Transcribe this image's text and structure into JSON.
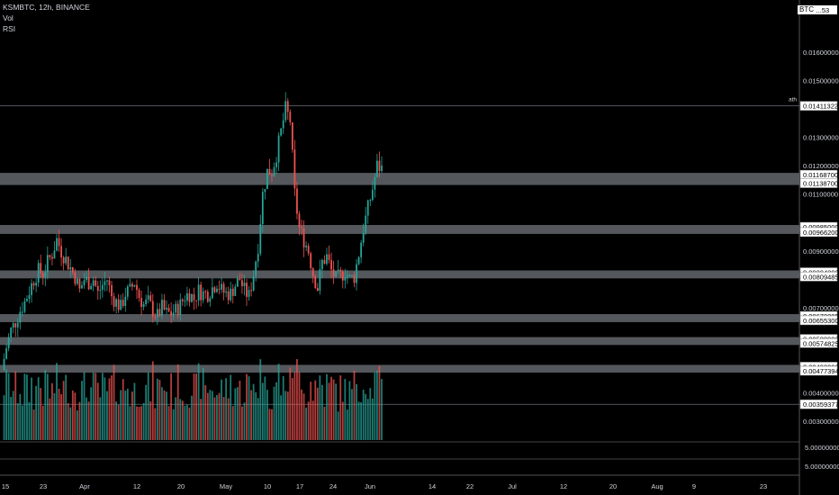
{
  "header": {
    "title": "KSMBTC, 12h, BINANCE",
    "indicators": [
      "Vol",
      "RSI"
    ],
    "top_price_label": "0.01...53",
    "currency_label": "BTC"
  },
  "chart_data": {
    "type": "candlestick",
    "symbol": "KSMBTC",
    "interval": "12h",
    "exchange": "BINANCE",
    "ylim": [
      0.0023,
      0.0174
    ],
    "price_ticks": [
      "0.01600000",
      "0.01500000",
      "0.01300000",
      "0.01200000",
      "0.01100000",
      "0.00900000",
      "0.00700000",
      "0.00400000",
      "0.00300000"
    ],
    "x_ticks": [
      "15",
      "23",
      "Apr",
      "12",
      "20",
      "May",
      "10",
      "17",
      "24",
      "Jun",
      "14",
      "22",
      "Jul",
      "12",
      "20",
      "Aug",
      "9",
      "23"
    ],
    "annotations": [
      {
        "text": "ath",
        "price": 0.01411322
      }
    ],
    "levels": [
      {
        "label": "0.01411322",
        "price": 0.01411322,
        "zone": false
      },
      {
        "label": "0.01168700",
        "price": 0.011687,
        "zone": true
      },
      {
        "label": "0.01138700",
        "price": 0.011387,
        "zone": true
      },
      {
        "label": "0.00985000",
        "price": 0.00985,
        "zone": true
      },
      {
        "label": "0.00966200",
        "price": 0.009662,
        "zone": true
      },
      {
        "label": "0.00824800",
        "price": 0.008248,
        "zone": true
      },
      {
        "label": "0.00809485",
        "price": 0.00809485,
        "zone": true
      },
      {
        "label": "0.00670885",
        "price": 0.00670885,
        "zone": true
      },
      {
        "label": "0.00655300",
        "price": 0.006553,
        "zone": true
      },
      {
        "label": "0.00589900",
        "price": 0.005899,
        "zone": true
      },
      {
        "label": "0.00574825",
        "price": 0.00574825,
        "zone": true
      },
      {
        "label": "0.00492000",
        "price": 0.00492,
        "zone": true
      },
      {
        "label": "0.00477394",
        "price": 0.00477394,
        "zone": true
      },
      {
        "label": "0.00359377",
        "price": 0.00359377,
        "zone": false
      }
    ],
    "price_path": [
      0.0048,
      0.0056,
      0.0062,
      0.0065,
      0.0069,
      0.0072,
      0.0076,
      0.008,
      0.0083,
      0.0082,
      0.0086,
      0.0089,
      0.0094,
      0.009,
      0.0087,
      0.0084,
      0.0081,
      0.0076,
      0.008,
      0.0079,
      0.008,
      0.0075,
      0.0078,
      0.008,
      0.0074,
      0.0072,
      0.007,
      0.0075,
      0.0076,
      0.0079,
      0.0074,
      0.0071,
      0.0072,
      0.0069,
      0.0067,
      0.007,
      0.0068,
      0.0068,
      0.0069,
      0.0071,
      0.0074,
      0.0075,
      0.0073,
      0.0076,
      0.0075,
      0.0075,
      0.0077,
      0.0079,
      0.0076,
      0.0075,
      0.0075,
      0.0078,
      0.008,
      0.0076,
      0.0074,
      0.0082,
      0.0092,
      0.011,
      0.0118,
      0.0118,
      0.0124,
      0.0132,
      0.014,
      0.0136,
      0.011,
      0.0098,
      0.0094,
      0.009,
      0.0082,
      0.0077,
      0.0086,
      0.0088,
      0.0083,
      0.008,
      0.0081,
      0.0083,
      0.008,
      0.0081,
      0.0089,
      0.0098,
      0.0105,
      0.0112,
      0.012,
      0.0119
    ],
    "legend_items": [
      "Vol",
      "RSI"
    ],
    "colors": {
      "up": "#26a69a",
      "down": "#ef5350",
      "zone": "#5d6066",
      "background": "#000000",
      "axis_text": "#d1d4dc",
      "grid": "#242424"
    }
  }
}
